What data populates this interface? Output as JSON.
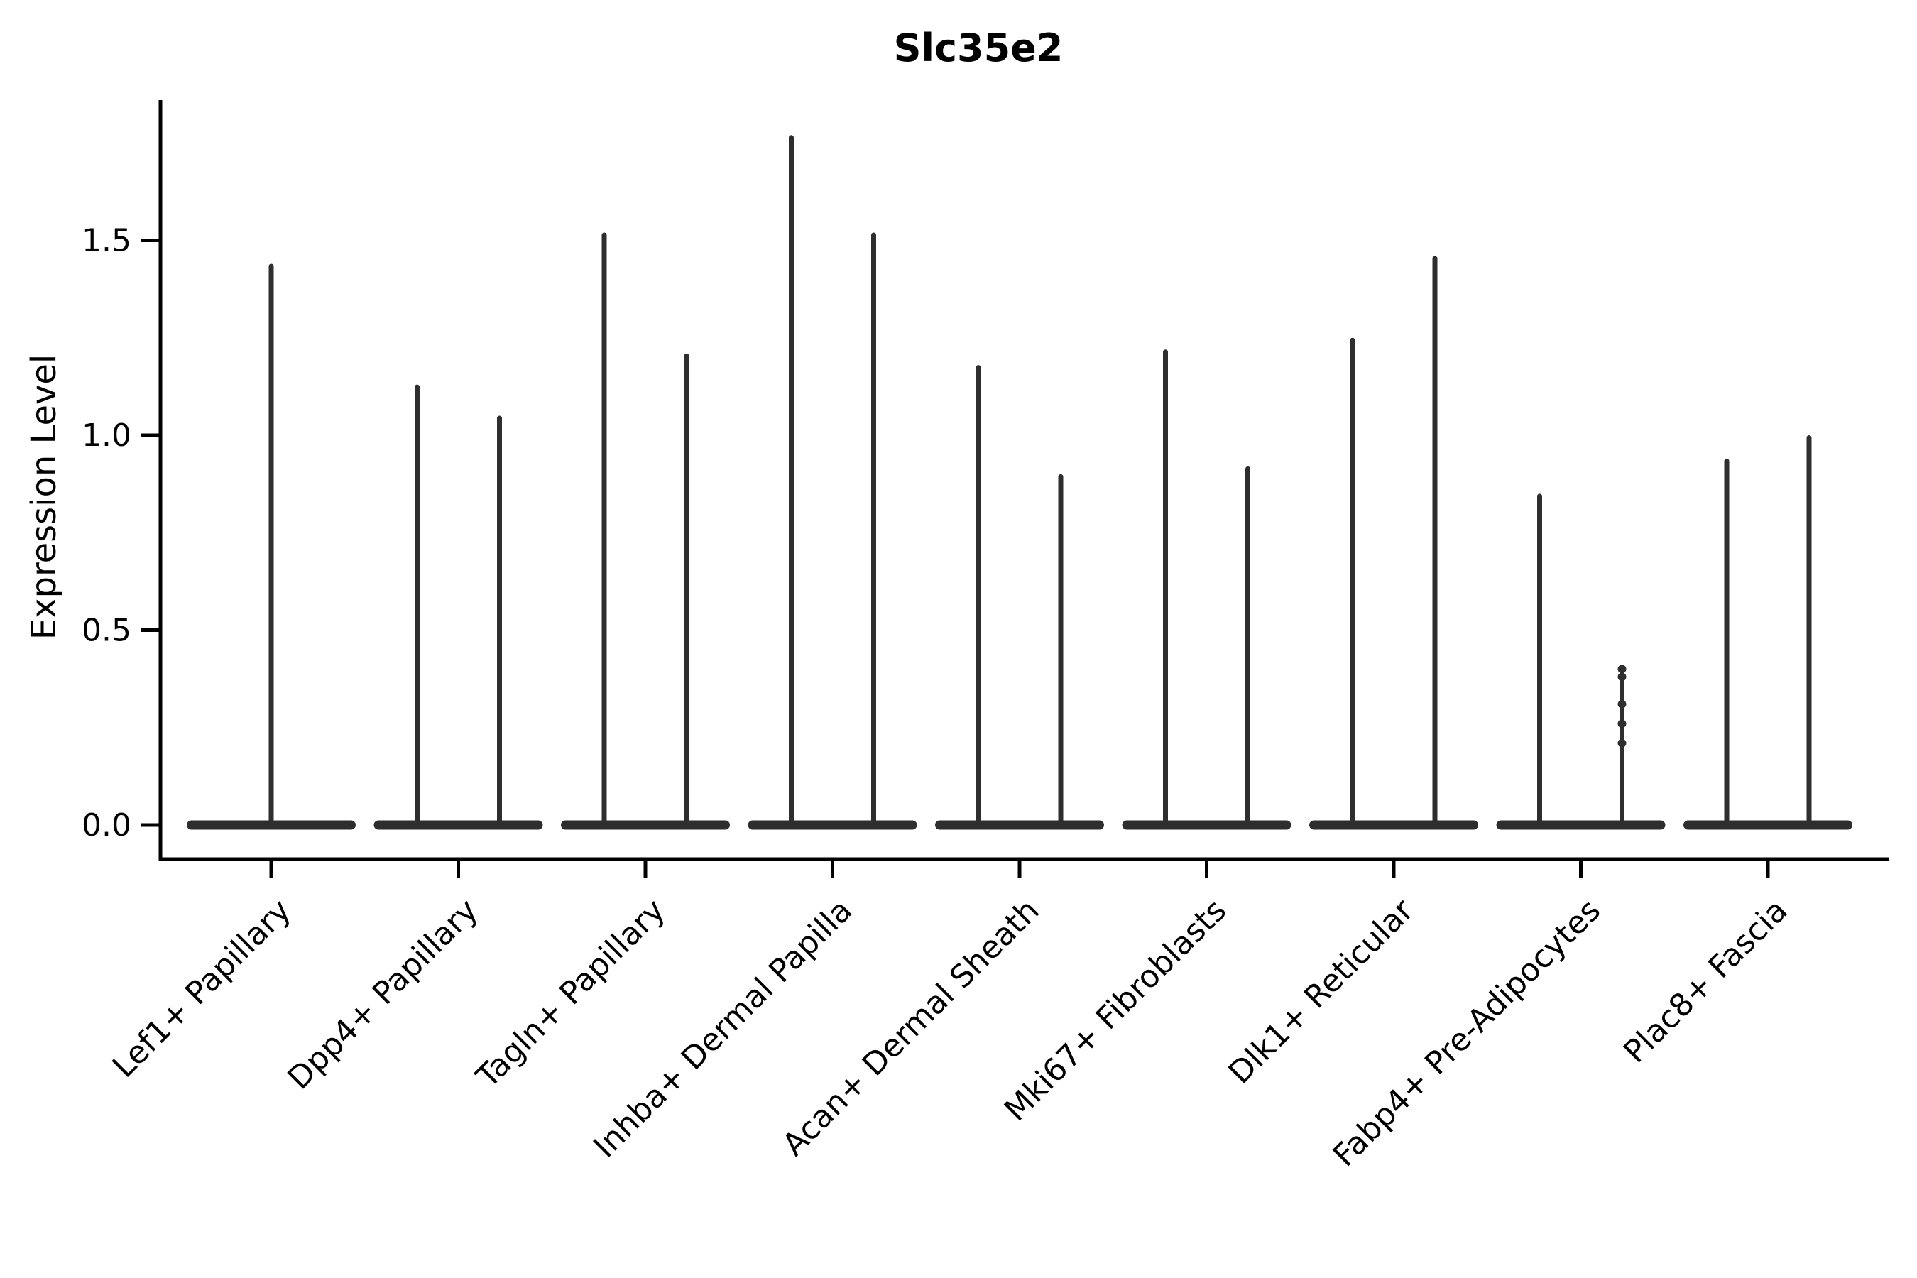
{
  "chart_data": {
    "type": "violin",
    "title": "Slc35e2",
    "ylabel": "Expression Level",
    "xlabel": "",
    "yticks": [
      "0.0",
      "0.5",
      "1.0",
      "1.5"
    ],
    "ytick_values": [
      0.0,
      0.5,
      1.0,
      1.5
    ],
    "ylim": [
      -0.09,
      1.86
    ],
    "grid": false,
    "legend": "none",
    "orientation": "vertical",
    "description": "Needle-shaped violins: wide flat base at expression 0 with thin spikes up to each group's max expression; first category has one centered violin, the rest have two side-by-side violins",
    "categories": [
      "Lef1+ Papillary",
      "Dpp4+ Papillary",
      "Tagln+ Papillary",
      "Inhba+ Dermal Papilla",
      "Acan+ Dermal Sheath",
      "Mki67+ Fibroblasts",
      "Dlk1+ Reticular",
      "Fabp4+ Pre-Adipocytes",
      "Plac8+ Fascia"
    ],
    "violins": [
      {
        "category": "Lef1+ Papillary",
        "maxima": [
          1.44
        ],
        "dots": [
          []
        ]
      },
      {
        "category": "Dpp4+ Papillary",
        "maxima": [
          1.13,
          1.05
        ],
        "dots": [
          [],
          []
        ]
      },
      {
        "category": "Tagln+ Papillary",
        "maxima": [
          1.52,
          1.21
        ],
        "dots": [
          [],
          []
        ]
      },
      {
        "category": "Inhba+ Dermal Papilla",
        "maxima": [
          1.77,
          1.52
        ],
        "dots": [
          [],
          []
        ]
      },
      {
        "category": "Acan+ Dermal Sheath",
        "maxima": [
          1.18,
          0.9
        ],
        "dots": [
          [],
          []
        ]
      },
      {
        "category": "Mki67+ Fibroblasts",
        "maxima": [
          1.22,
          0.92
        ],
        "dots": [
          [],
          []
        ]
      },
      {
        "category": "Dlk1+ Reticular",
        "maxima": [
          1.25,
          1.46
        ],
        "dots": [
          [],
          []
        ]
      },
      {
        "category": "Fabp4+ Pre-Adipocytes",
        "maxima": [
          0.85,
          0.4
        ],
        "dots": [
          [],
          [
            0.4,
            0.38,
            0.31,
            0.26,
            0.21
          ]
        ]
      },
      {
        "category": "Plac8+ Fascia",
        "maxima": [
          0.94,
          1.0
        ],
        "dots": [
          [],
          []
        ]
      }
    ],
    "colors": {
      "violin_ink": "#2e2e2e",
      "axis": "#000000",
      "background": "#ffffff"
    }
  }
}
